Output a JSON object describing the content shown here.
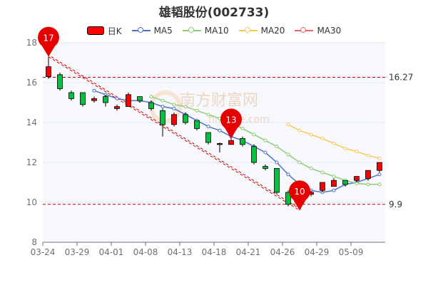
{
  "title": "雄韬股份(002733)",
  "legend": [
    {
      "label": "日K",
      "kind": "candle",
      "color": "#ff0000"
    },
    {
      "label": "MA5",
      "kind": "line",
      "color": "#5470c6"
    },
    {
      "label": "MA10",
      "kind": "line",
      "color": "#91cc75"
    },
    {
      "label": "MA20",
      "kind": "line",
      "color": "#fac858"
    },
    {
      "label": "MA30",
      "kind": "line",
      "color": "#ee6666"
    }
  ],
  "watermark": {
    "text": "南方财富网",
    "url": "finance.com"
  },
  "chart_data": {
    "type": "candlestick",
    "ylim": [
      8,
      18
    ],
    "yticks": [
      "8",
      "10",
      "12",
      "14",
      "16",
      "18"
    ],
    "xticks": [
      "03-24",
      "03-29",
      "04-01",
      "04-08",
      "04-13",
      "04-18",
      "04-21",
      "04-26",
      "04-29",
      "05-09"
    ],
    "xtick_index": [
      0,
      3,
      6,
      9,
      12,
      15,
      18,
      21,
      24,
      27
    ],
    "up_color": "#ff0000",
    "down_color": "#00c040",
    "candles": [
      {
        "o": 16.3,
        "c": 16.8,
        "h": 17.3,
        "l": 16.2
      },
      {
        "o": 16.4,
        "c": 15.7,
        "h": 16.5,
        "l": 15.6
      },
      {
        "o": 15.5,
        "c": 15.2,
        "h": 15.6,
        "l": 15.1
      },
      {
        "o": 15.5,
        "c": 14.9,
        "h": 15.5,
        "l": 14.8
      },
      {
        "o": 15.1,
        "c": 15.2,
        "h": 15.3,
        "l": 15.0
      },
      {
        "o": 15.3,
        "c": 15.0,
        "h": 15.4,
        "l": 14.8
      },
      {
        "o": 14.7,
        "c": 14.8,
        "h": 14.9,
        "l": 14.6
      },
      {
        "o": 14.8,
        "c": 15.4,
        "h": 15.5,
        "l": 14.8
      },
      {
        "o": 15.3,
        "c": 15.1,
        "h": 15.3,
        "l": 15.0
      },
      {
        "o": 15.0,
        "c": 14.7,
        "h": 15.1,
        "l": 14.6
      },
      {
        "o": 14.6,
        "c": 13.9,
        "h": 14.7,
        "l": 13.3
      },
      {
        "o": 13.9,
        "c": 14.4,
        "h": 14.5,
        "l": 13.8
      },
      {
        "o": 14.4,
        "c": 14.0,
        "h": 14.5,
        "l": 13.9
      },
      {
        "o": 14.1,
        "c": 13.7,
        "h": 14.1,
        "l": 13.6
      },
      {
        "o": 13.5,
        "c": 13.0,
        "h": 13.5,
        "l": 12.9
      },
      {
        "o": 12.9,
        "c": 12.95,
        "h": 13.0,
        "l": 12.5
      },
      {
        "o": 12.9,
        "c": 13.1,
        "h": 13.2,
        "l": 12.9
      },
      {
        "o": 13.2,
        "c": 12.9,
        "h": 13.3,
        "l": 12.8
      },
      {
        "o": 12.8,
        "c": 12.0,
        "h": 12.9,
        "l": 11.9
      },
      {
        "o": 11.8,
        "c": 11.7,
        "h": 11.9,
        "l": 11.6
      },
      {
        "o": 11.7,
        "c": 10.5,
        "h": 11.7,
        "l": 10.4
      },
      {
        "o": 10.5,
        "c": 9.9,
        "h": 10.6,
        "l": 9.8
      },
      {
        "o": 9.9,
        "c": 10.4,
        "h": 10.6,
        "l": 9.6
      },
      {
        "o": 10.4,
        "c": 10.5,
        "h": 10.6,
        "l": 10.3
      },
      {
        "o": 10.6,
        "c": 11.0,
        "h": 11.0,
        "l": 10.5
      },
      {
        "o": 10.8,
        "c": 11.1,
        "h": 11.2,
        "l": 10.8
      },
      {
        "o": 11.1,
        "c": 10.9,
        "h": 11.1,
        "l": 10.8
      },
      {
        "o": 11.1,
        "c": 11.3,
        "h": 11.3,
        "l": 11.0
      },
      {
        "o": 11.2,
        "c": 11.6,
        "h": 11.6,
        "l": 11.1
      },
      {
        "o": 11.6,
        "c": 12.0,
        "h": 12.0,
        "l": 11.5
      }
    ],
    "ma5": [
      null,
      null,
      null,
      null,
      15.6,
      15.4,
      15.2,
      15.1,
      15.1,
      15.0,
      14.8,
      14.7,
      14.4,
      14.1,
      13.8,
      13.6,
      13.3,
      13.1,
      12.8,
      12.5,
      12.0,
      11.4,
      10.9,
      10.6,
      10.5,
      10.6,
      10.9,
      11.0,
      11.2,
      11.4
    ],
    "ma10": [
      null,
      null,
      null,
      null,
      null,
      null,
      null,
      null,
      null,
      15.3,
      15.1,
      14.9,
      14.8,
      14.6,
      14.4,
      14.2,
      14.0,
      13.7,
      13.4,
      13.1,
      12.8,
      12.4,
      12.0,
      11.7,
      11.5,
      11.3,
      11.1,
      10.95,
      10.9,
      10.9
    ],
    "ma20": [
      null,
      null,
      null,
      null,
      null,
      null,
      null,
      null,
      null,
      null,
      null,
      null,
      null,
      null,
      null,
      null,
      null,
      null,
      null,
      null,
      null,
      13.9,
      13.6,
      13.4,
      13.2,
      12.95,
      12.7,
      12.55,
      12.35,
      12.2
    ],
    "ma30": [],
    "ref_lines": [
      {
        "value": 16.27,
        "label": "16.27"
      },
      {
        "value": 9.9,
        "label": "9.9"
      }
    ],
    "pins": [
      {
        "index": 0,
        "value": 17.3,
        "label": "17"
      },
      {
        "index": 16,
        "value": 13.2,
        "label": "13"
      },
      {
        "index": 22,
        "value": 9.6,
        "label": "10"
      }
    ],
    "trend_lines": [
      {
        "from": [
          0,
          17.3
        ],
        "to": [
          22,
          9.6
        ]
      },
      {
        "from": [
          0,
          17.3
        ],
        "to": [
          22,
          9.6
        ],
        "second": true
      }
    ]
  }
}
